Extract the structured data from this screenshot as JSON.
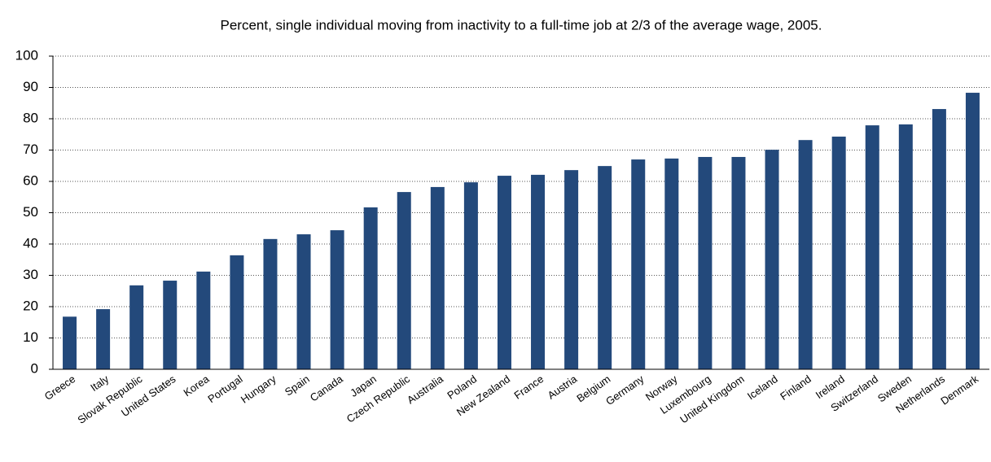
{
  "chart_data": {
    "type": "bar",
    "title": "Percent, single individual moving from inactivity to a full-time job at 2/3 of the average wage, 2005.",
    "categories": [
      "Greece",
      "Italy",
      "Slovak Republic",
      "United States",
      "Korea",
      "Portugal",
      "Hungary",
      "Spain",
      "Canada",
      "Japan",
      "Czech Republic",
      "Australia",
      "Poland",
      "New Zealand",
      "France",
      "Austria",
      "Belgium",
      "Germany",
      "Norway",
      "Luxembourg",
      "United Kingdom",
      "Iceland",
      "Finland",
      "Ireland",
      "Switzerland",
      "Sweden",
      "Netherlands",
      "Denmark"
    ],
    "values": [
      16.8,
      19.2,
      26.8,
      28.3,
      31.2,
      36.4,
      41.6,
      43.1,
      44.4,
      51.7,
      56.6,
      58.2,
      59.7,
      61.8,
      62.1,
      63.6,
      64.9,
      67.0,
      67.3,
      67.8,
      67.8,
      70.1,
      73.2,
      74.3,
      77.9,
      78.2,
      83.1,
      88.3
    ],
    "color": "#23497b",
    "ylim": [
      0,
      100
    ],
    "yticks": [
      0,
      10,
      20,
      30,
      40,
      50,
      60,
      70,
      80,
      90,
      100
    ],
    "grid": true
  }
}
